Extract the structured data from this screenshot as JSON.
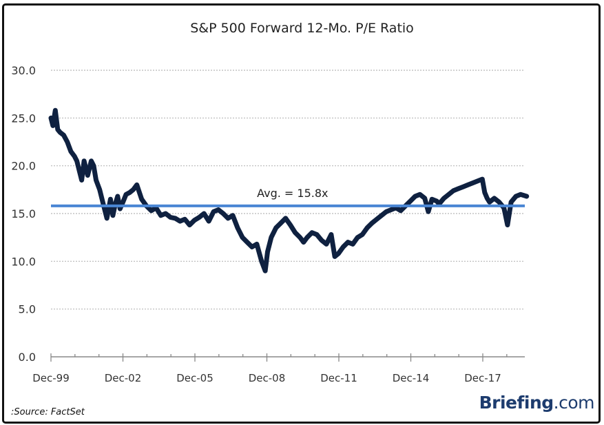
{
  "chart_data": {
    "type": "line",
    "title": "S&P 500 Forward 12-Mo. P/E Ratio",
    "xlabel": "",
    "ylabel": "",
    "ylim": [
      0,
      30
    ],
    "yticks": [
      "0.0",
      "5.0",
      "10.0",
      "15.0",
      "20.0",
      "25.0",
      "30.0"
    ],
    "ytick_values": [
      0,
      5,
      10,
      15,
      20,
      25,
      30
    ],
    "xticks": [
      "Dec-99",
      "Dec-02",
      "Dec-05",
      "Dec-08",
      "Dec-11",
      "Dec-14",
      "Dec-17"
    ],
    "xtick_years": [
      1999.92,
      2002.92,
      2005.92,
      2008.92,
      2011.92,
      2014.92,
      2017.92
    ],
    "xlim_years": [
      1999.92,
      2019.75
    ],
    "grid": "horizontal dotted",
    "series": [
      {
        "name": "S&P 500 Forward 12-Mo. P/E",
        "color": "#0f2140",
        "x_years": [
          1999.92,
          2000.0,
          2000.1,
          2000.2,
          2000.3,
          2000.45,
          2000.6,
          2000.75,
          2000.9,
          2001.0,
          2001.1,
          2001.2,
          2001.3,
          2001.45,
          2001.6,
          2001.7,
          2001.8,
          2001.95,
          2002.1,
          2002.25,
          2002.4,
          2002.5,
          2002.6,
          2002.7,
          2002.8,
          2002.92,
          2003.05,
          2003.2,
          2003.35,
          2003.5,
          2003.7,
          2003.9,
          2004.1,
          2004.3,
          2004.5,
          2004.7,
          2004.9,
          2005.1,
          2005.3,
          2005.5,
          2005.7,
          2005.9,
          2006.1,
          2006.3,
          2006.5,
          2006.7,
          2006.9,
          2007.1,
          2007.3,
          2007.5,
          2007.7,
          2007.9,
          2008.1,
          2008.3,
          2008.5,
          2008.7,
          2008.85,
          2008.95,
          2009.1,
          2009.3,
          2009.5,
          2009.7,
          2009.9,
          2010.1,
          2010.3,
          2010.45,
          2010.6,
          2010.8,
          2011.0,
          2011.2,
          2011.4,
          2011.6,
          2011.75,
          2011.9,
          2012.1,
          2012.3,
          2012.5,
          2012.7,
          2012.9,
          2013.1,
          2013.3,
          2013.5,
          2013.7,
          2013.9,
          2014.1,
          2014.3,
          2014.5,
          2014.7,
          2014.9,
          2015.1,
          2015.3,
          2015.5,
          2015.65,
          2015.8,
          2016.0,
          2016.1,
          2016.3,
          2016.5,
          2016.7,
          2016.9,
          2017.1,
          2017.3,
          2017.5,
          2017.7,
          2017.9,
          2018.0,
          2018.1,
          2018.2,
          2018.4,
          2018.6,
          2018.8,
          2018.95,
          2019.1,
          2019.3,
          2019.5,
          2019.75
        ],
        "values": [
          25.0,
          24.2,
          25.8,
          23.8,
          23.5,
          23.2,
          22.5,
          21.5,
          21.0,
          20.5,
          19.5,
          18.5,
          20.5,
          19.0,
          20.5,
          20.0,
          18.5,
          17.5,
          16.0,
          14.5,
          16.5,
          14.8,
          16.0,
          16.8,
          15.5,
          16.2,
          17.0,
          17.2,
          17.5,
          18.0,
          16.5,
          15.8,
          15.3,
          15.6,
          14.8,
          15.0,
          14.6,
          14.5,
          14.2,
          14.4,
          13.8,
          14.3,
          14.6,
          15.0,
          14.2,
          15.2,
          15.4,
          15.0,
          14.5,
          14.8,
          13.5,
          12.5,
          12.0,
          11.5,
          11.8,
          10.0,
          9.0,
          11.0,
          12.5,
          13.5,
          14.0,
          14.5,
          13.8,
          13.0,
          12.5,
          12.0,
          12.5,
          13.0,
          12.8,
          12.2,
          11.8,
          12.8,
          10.5,
          10.8,
          11.5,
          12.0,
          11.8,
          12.5,
          12.8,
          13.5,
          14.0,
          14.4,
          14.8,
          15.2,
          15.4,
          15.6,
          15.3,
          15.8,
          16.3,
          16.8,
          17.0,
          16.6,
          15.2,
          16.5,
          16.3,
          16.0,
          16.6,
          17.0,
          17.4,
          17.6,
          17.8,
          18.0,
          18.2,
          18.4,
          18.6,
          17.2,
          16.6,
          16.2,
          16.6,
          16.2,
          15.6,
          13.8,
          16.2,
          16.8,
          17.0,
          16.8
        ]
      },
      {
        "name": "Avg.",
        "color": "#4a86d4",
        "type": "hline",
        "value": 15.8
      }
    ],
    "annotations": [
      {
        "text": "Avg. = 15.8x",
        "x_year": 2008.9,
        "y": 16.8
      }
    ]
  },
  "footer": {
    "source": ":Source: FactSet",
    "brand_name": "Briefing",
    "brand_suffix": ".com"
  }
}
